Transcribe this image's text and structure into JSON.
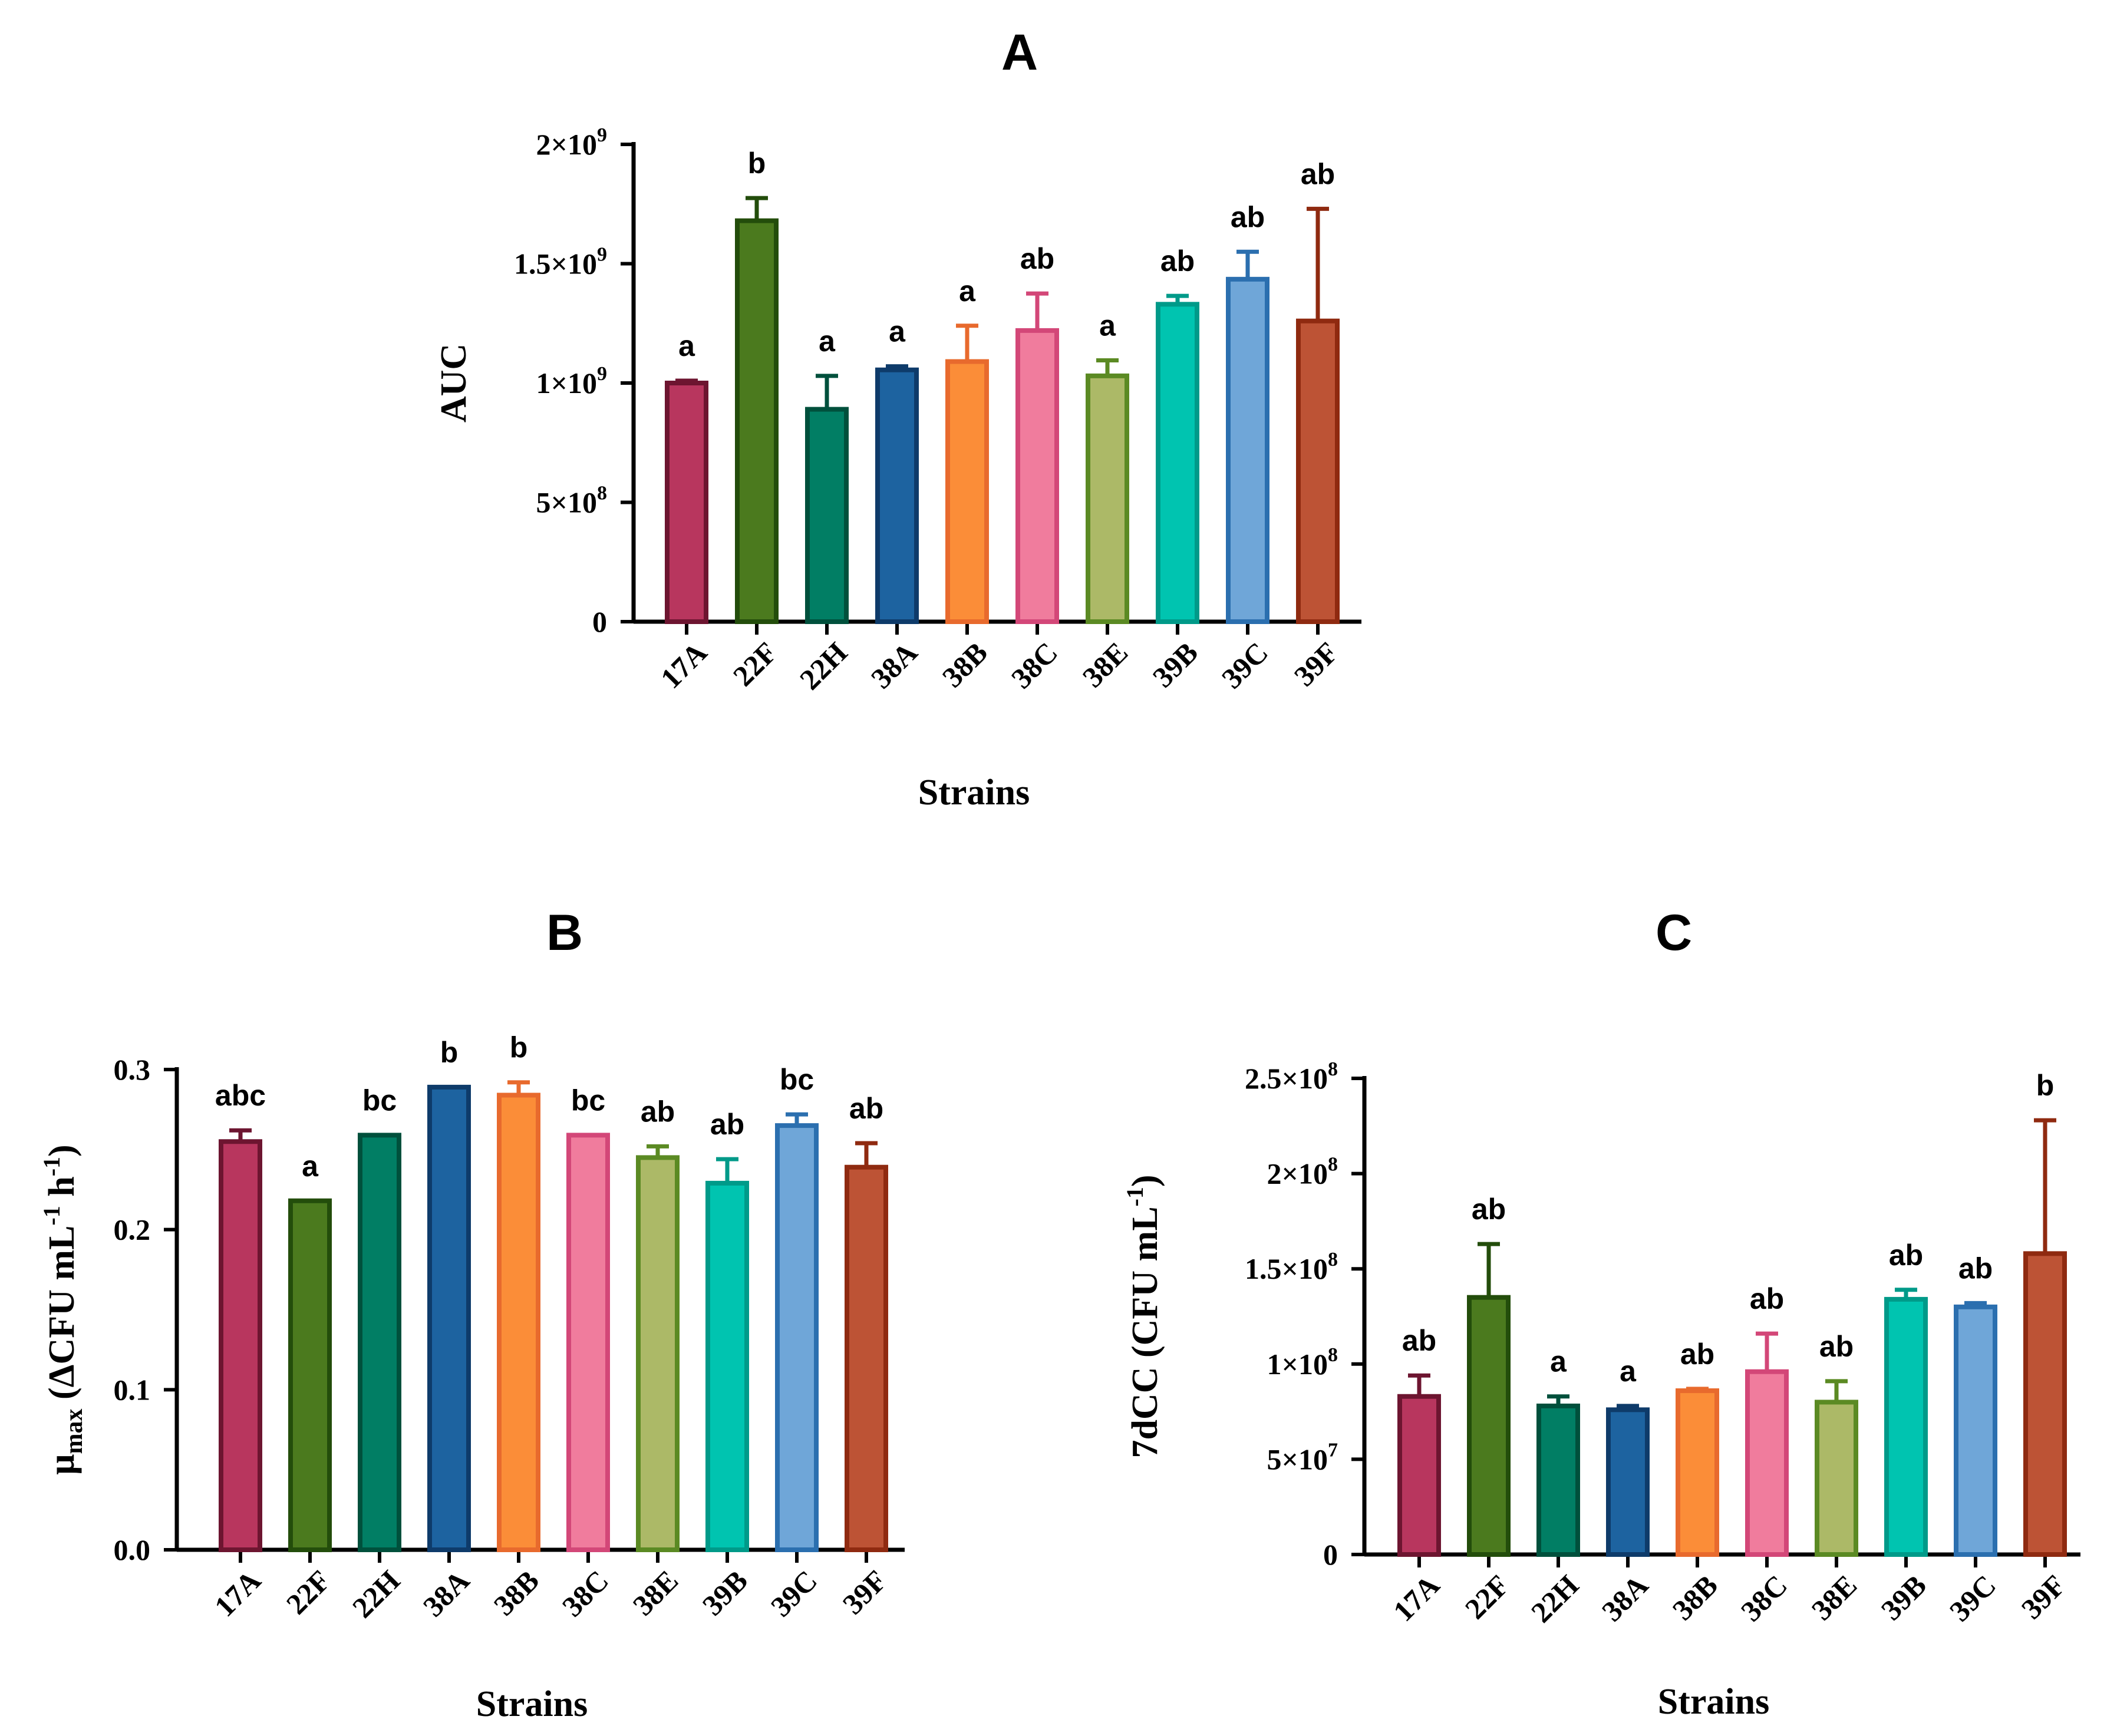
{
  "chart_data": [
    {
      "type": "bar",
      "panel": "A",
      "title": "A",
      "xlabel": "Strains",
      "ylabel": "AUC",
      "ylim": [
        0,
        2000000000
      ],
      "yticks": [
        0,
        500000000,
        1000000000,
        1500000000,
        2000000000
      ],
      "ytick_labels": [
        {
          "mant": "0",
          "exp": ""
        },
        {
          "mant": "5×10",
          "exp": "8"
        },
        {
          "mant": "1×10",
          "exp": "9"
        },
        {
          "mant": "1.5×10",
          "exp": "9"
        },
        {
          "mant": "2×10",
          "exp": "9"
        }
      ],
      "categories": [
        "17A",
        "22F",
        "22H",
        "38A",
        "38B",
        "38C",
        "38E",
        "39B",
        "39C",
        "39F"
      ],
      "values": [
        1000000000,
        1680000000,
        890000000,
        1055000000,
        1090000000,
        1220000000,
        1030000000,
        1330000000,
        1435000000,
        1260000000
      ],
      "errors": [
        10000000,
        95000000,
        140000000,
        15000000,
        150000000,
        155000000,
        65000000,
        35000000,
        115000000,
        470000000
      ],
      "significance": [
        "a",
        "b",
        "a",
        "a",
        "a",
        "ab",
        "a",
        "ab",
        "ab",
        "ab"
      ],
      "grid": false
    },
    {
      "type": "bar",
      "panel": "B",
      "title": "B",
      "xlabel": "Strains",
      "ylabel": {
        "pre": "μ",
        "sub": "max",
        "mid": " (ΔCFU mL",
        "sup1": "-1",
        "mid2": " h",
        "sup2": "-1",
        "post": ")"
      },
      "ylim": [
        0,
        0.3
      ],
      "yticks": [
        0,
        0.1,
        0.2,
        0.3
      ],
      "ytick_labels": [
        {
          "mant": "0.0",
          "exp": ""
        },
        {
          "mant": "0.1",
          "exp": ""
        },
        {
          "mant": "0.2",
          "exp": ""
        },
        {
          "mant": "0.3",
          "exp": ""
        }
      ],
      "categories": [
        "17A",
        "22F",
        "22H",
        "38A",
        "38B",
        "38C",
        "38E",
        "39B",
        "39C",
        "39F"
      ],
      "values": [
        0.255,
        0.218,
        0.259,
        0.289,
        0.284,
        0.259,
        0.245,
        0.229,
        0.265,
        0.239
      ],
      "errors": [
        0.007,
        0,
        0,
        0,
        0.008,
        0,
        0.007,
        0.015,
        0.007,
        0.015
      ],
      "significance": [
        "abc",
        "a",
        "bc",
        "b",
        "b",
        "bc",
        "ab",
        "ab",
        "bc",
        "ab"
      ],
      "grid": false
    },
    {
      "type": "bar",
      "panel": "C",
      "title": "C",
      "xlabel": "Strains",
      "ylabel": {
        "pre": "7dCC (CFU mL",
        "sup": "-1",
        "post": ")"
      },
      "ylim": [
        0,
        250000000
      ],
      "yticks": [
        0,
        50000000,
        100000000,
        150000000,
        200000000,
        250000000
      ],
      "ytick_labels": [
        {
          "mant": "0",
          "exp": ""
        },
        {
          "mant": "5×10",
          "exp": "7"
        },
        {
          "mant": "1×10",
          "exp": "8"
        },
        {
          "mant": "1.5×10",
          "exp": "8"
        },
        {
          "mant": "2×10",
          "exp": "8"
        },
        {
          "mant": "2.5×10",
          "exp": "8"
        }
      ],
      "categories": [
        "17A",
        "22F",
        "22H",
        "38A",
        "38B",
        "38C",
        "38E",
        "39B",
        "39C",
        "39F"
      ],
      "values": [
        83000000,
        135000000,
        78000000,
        76000000,
        86000000,
        96000000,
        80000000,
        134000000,
        130000000,
        158000000
      ],
      "errors": [
        11000000,
        28000000,
        5000000,
        2000000,
        1000000,
        20000000,
        11000000,
        5000000,
        2000000,
        70000000
      ],
      "significance": [
        "ab",
        "ab",
        "a",
        "a",
        "ab",
        "ab",
        "ab",
        "ab",
        "ab",
        "b"
      ],
      "grid": false
    }
  ],
  "colors": {
    "fills": [
      "#b8365e",
      "#4b7a1e",
      "#017e64",
      "#1d63a0",
      "#fb8d38",
      "#f07c9d",
      "#acb967",
      "#00c4b0",
      "#6fa6d8",
      "#bd5335"
    ],
    "strokes": [
      "#6d1530",
      "#234d0b",
      "#00503c",
      "#0e3b6a",
      "#e86a2d",
      "#d34778",
      "#5b8a23",
      "#009a89",
      "#2b6faf",
      "#8f2a10"
    ]
  }
}
